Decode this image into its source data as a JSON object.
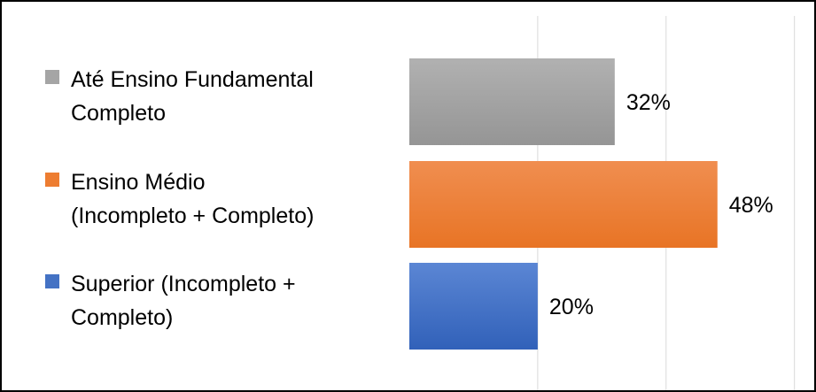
{
  "chart_data": {
    "type": "bar",
    "orientation": "horizontal",
    "title": "",
    "xlabel": "",
    "ylabel": "",
    "categories": [
      "Até Ensino Fundamental Completo",
      "Ensino Médio (Incompleto + Completo)",
      "Superior (Incompleto + Completo)"
    ],
    "legend": [
      {
        "lines": [
          "Até Ensino Fundamental",
          "Completo"
        ],
        "color": "#a5a5a5"
      },
      {
        "lines": [
          "Ensino Médio",
          "(Incompleto + Completo)"
        ],
        "color": "#ed7d31"
      },
      {
        "lines": [
          "Superior (Incompleto +",
          "Completo)"
        ],
        "color": "#4472c4"
      }
    ],
    "values": [
      32,
      48,
      20
    ],
    "data_labels": [
      "32%",
      "48%",
      "20%"
    ],
    "colors": [
      "#a5a5a5",
      "#ed7d31",
      "#4472c4"
    ],
    "xlim": [
      0,
      60
    ],
    "x_gridlines": [
      20,
      40,
      60
    ],
    "grid": true,
    "legend_position": "left",
    "axis_tick_labels_shown": false
  }
}
